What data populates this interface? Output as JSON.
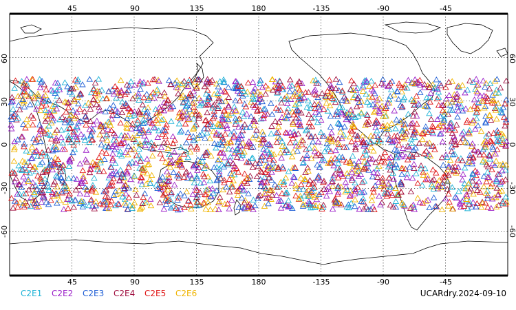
{
  "map": {
    "lon_labels": [
      "45",
      "90",
      "135",
      "180",
      "-135",
      "-90",
      "-45"
    ],
    "lat_labels": [
      "60",
      "30",
      "0",
      "-30",
      "-60"
    ],
    "lon_values": [
      45,
      90,
      135,
      180,
      225,
      270,
      315
    ],
    "lat_values": [
      60,
      30,
      0,
      -30,
      -60
    ],
    "lon_range": [
      0,
      360
    ],
    "lat_range": [
      -90,
      90
    ],
    "grid": true,
    "observation_lat_range": [
      -45,
      45
    ],
    "stamp": "UCARdry.2024-09-10"
  },
  "legend": [
    {
      "label": "C2E1",
      "color": "#1fb3d6"
    },
    {
      "label": "C2E2",
      "color": "#9b1fc8"
    },
    {
      "label": "C2E3",
      "color": "#1f5fd6"
    },
    {
      "label": "C2E4",
      "color": "#a01040"
    },
    {
      "label": "C2E5",
      "color": "#e01818"
    },
    {
      "label": "C2E6",
      "color": "#f0b400"
    }
  ]
}
